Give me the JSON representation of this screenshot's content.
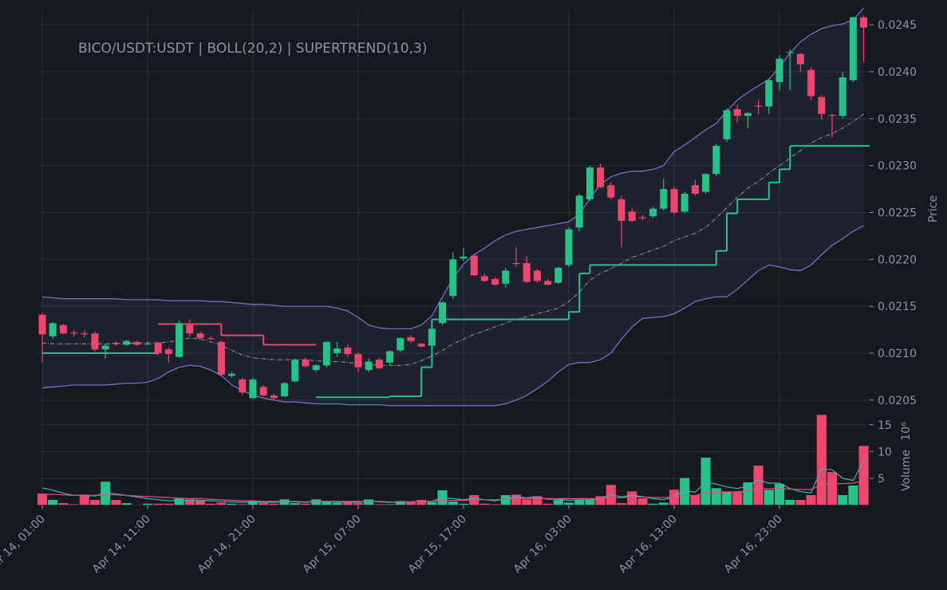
{
  "chart_data": {
    "type": "candlestick",
    "title": "BICO/USDT:USDT | BOLL(20,2) | SUPERTREND(10,3)",
    "x": [
      "Apr 14, 01:00",
      null,
      null,
      null,
      null,
      null,
      null,
      null,
      null,
      null,
      "Apr 14, 11:00",
      null,
      null,
      null,
      null,
      null,
      null,
      null,
      null,
      null,
      "Apr 14, 21:00",
      null,
      null,
      null,
      null,
      null,
      null,
      null,
      null,
      null,
      "Apr 15, 07:00",
      null,
      null,
      null,
      null,
      null,
      null,
      null,
      null,
      null,
      "Apr 15, 17:00",
      null,
      null,
      null,
      null,
      null,
      null,
      null,
      null,
      null,
      "Apr 16, 03:00",
      null,
      null,
      null,
      null,
      null,
      null,
      null,
      null,
      null,
      "Apr 16, 13:00",
      null,
      null,
      null,
      null,
      null,
      null,
      null,
      null,
      null,
      "Apr 16, 23:00",
      null,
      null,
      null,
      null,
      null,
      null,
      null,
      null
    ],
    "open": [
      0.02141,
      0.02118,
      0.0213,
      0.02122,
      0.02121,
      0.02121,
      0.02104,
      0.02111,
      0.02109,
      0.02112,
      0.0211,
      0.02111,
      0.02104,
      0.02096,
      0.0213,
      0.02121,
      0.02116,
      0.02112,
      0.02076,
      0.02072,
      0.02052,
      0.02064,
      0.02055,
      0.02054,
      0.0207,
      0.02093,
      0.02082,
      0.02087,
      0.021,
      0.02106,
      0.02099,
      0.02082,
      0.02093,
      0.0209,
      0.02103,
      0.02117,
      0.0211,
      0.02108,
      0.02132,
      0.02161,
      0.02201,
      0.02204,
      0.02182,
      0.02179,
      0.02174,
      0.02196,
      0.02196,
      0.02188,
      0.02177,
      0.02175,
      0.02194,
      0.02234,
      0.02264,
      0.02298,
      0.02279,
      0.02264,
      0.02251,
      0.02245,
      0.02246,
      0.02254,
      0.02275,
      0.02251,
      0.02279,
      0.02272,
      0.02291,
      0.02328,
      0.0236,
      0.02353,
      0.02364,
      0.02363,
      0.02389,
      0.0242,
      0.02419,
      0.02402,
      0.02373,
      0.02354,
      0.02353,
      0.02391,
      0.02458
    ],
    "high": [
      0.02143,
      0.02133,
      0.02131,
      0.02124,
      0.02124,
      0.02123,
      0.0211,
      0.02113,
      0.02114,
      0.02113,
      0.02112,
      0.02112,
      0.02106,
      0.02135,
      0.02136,
      0.02123,
      0.02118,
      0.02113,
      0.0208,
      0.02074,
      0.02074,
      0.02066,
      0.02057,
      0.02069,
      0.02094,
      0.02095,
      0.02088,
      0.02113,
      0.02112,
      0.02109,
      0.02101,
      0.02094,
      0.02095,
      0.02103,
      0.02117,
      0.02119,
      0.02111,
      0.02127,
      0.02155,
      0.02208,
      0.02212,
      0.02206,
      0.02185,
      0.02181,
      0.02191,
      0.02213,
      0.02203,
      0.0219,
      0.02179,
      0.02192,
      0.02234,
      0.0227,
      0.023,
      0.02302,
      0.02282,
      0.02268,
      0.02255,
      0.02247,
      0.02256,
      0.02286,
      0.02278,
      0.02272,
      0.02285,
      0.02292,
      0.02323,
      0.02361,
      0.02365,
      0.02357,
      0.0237,
      0.02393,
      0.02418,
      0.02424,
      0.0242,
      0.02405,
      0.02375,
      0.02355,
      0.024,
      0.02459,
      0.0246
    ],
    "low": [
      0.0209,
      0.02116,
      0.0212,
      0.02118,
      0.02117,
      0.02102,
      0.02094,
      0.02108,
      0.02108,
      0.02108,
      0.02109,
      0.02098,
      0.0209,
      0.02095,
      0.02118,
      0.02114,
      0.02114,
      0.02076,
      0.02074,
      0.02055,
      0.02051,
      0.02054,
      0.0205,
      0.02053,
      0.02069,
      0.02085,
      0.0208,
      0.02085,
      0.02096,
      0.02096,
      0.0208,
      0.0208,
      0.02083,
      0.02088,
      0.02101,
      0.02111,
      0.02106,
      0.02107,
      0.0213,
      0.02158,
      0.02198,
      0.02182,
      0.02176,
      0.02172,
      0.0217,
      0.02192,
      0.02175,
      0.02175,
      0.02172,
      0.02174,
      0.02192,
      0.0223,
      0.02262,
      0.02276,
      0.02264,
      0.02213,
      0.0224,
      0.02242,
      0.02244,
      0.02252,
      0.02248,
      0.02249,
      0.02268,
      0.0227,
      0.02289,
      0.02325,
      0.02346,
      0.0234,
      0.02355,
      0.02355,
      0.0238,
      0.0238,
      0.024,
      0.0237,
      0.02349,
      0.0233,
      0.02351,
      0.02389,
      0.0241
    ],
    "close": [
      0.0212,
      0.02132,
      0.02121,
      0.02121,
      0.0212,
      0.02104,
      0.02108,
      0.0211,
      0.02113,
      0.02109,
      0.0211,
      0.021,
      0.02099,
      0.02132,
      0.02121,
      0.02116,
      0.02115,
      0.02077,
      0.02078,
      0.02058,
      0.02072,
      0.02055,
      0.02052,
      0.02068,
      0.02093,
      0.02086,
      0.02087,
      0.02112,
      0.02105,
      0.02099,
      0.02085,
      0.02091,
      0.02084,
      0.02102,
      0.02116,
      0.02113,
      0.02107,
      0.02126,
      0.02154,
      0.022,
      0.02203,
      0.02183,
      0.02177,
      0.02173,
      0.02188,
      0.02195,
      0.02176,
      0.02177,
      0.02173,
      0.02191,
      0.02232,
      0.02268,
      0.02298,
      0.02277,
      0.02266,
      0.02241,
      0.02241,
      0.02244,
      0.02254,
      0.02275,
      0.0225,
      0.0227,
      0.0227,
      0.02291,
      0.02321,
      0.02359,
      0.02353,
      0.02356,
      0.02363,
      0.02391,
      0.02414,
      0.02421,
      0.02408,
      0.02374,
      0.02355,
      0.02353,
      0.02394,
      0.02458,
      0.02447
    ],
    "colors": {
      "up": "#26c28a",
      "down": "#f0466e"
    },
    "ylabel": "Price",
    "ylim": [
      0.02043,
      0.02468
    ],
    "yticks": [
      0.0205,
      {
        "value": 0.021,
        "label": "0.0210"
      },
      0.0215,
      {
        "value": 0.022,
        "label": "0.0220"
      },
      0.0225,
      {
        "value": 0.023,
        "label": "0.0230"
      },
      0.0235,
      {
        "value": 0.024,
        "label": "0.0240"
      },
      0.0245
    ],
    "grid": true,
    "bollinger": {
      "color": "#7b6cc9",
      "middle_color": "#9a9a9a",
      "upper": [
        0.0216,
        0.02159,
        0.02158,
        0.02158,
        0.02158,
        0.02158,
        0.02158,
        0.02158,
        0.02157,
        0.02157,
        0.02157,
        0.02157,
        0.02156,
        0.02156,
        0.02156,
        0.02156,
        0.02155,
        0.02155,
        0.02154,
        0.02153,
        0.02152,
        0.02152,
        0.02151,
        0.0215,
        0.0215,
        0.0215,
        0.0215,
        0.0215,
        0.02148,
        0.02145,
        0.02138,
        0.0213,
        0.02127,
        0.02126,
        0.02126,
        0.02126,
        0.0213,
        0.0214,
        0.0216,
        0.0218,
        0.02195,
        0.02205,
        0.02212,
        0.0222,
        0.02226,
        0.0223,
        0.02232,
        0.02234,
        0.02236,
        0.02238,
        0.0224,
        0.02248,
        0.02265,
        0.0228,
        0.02288,
        0.02292,
        0.02294,
        0.02294,
        0.02296,
        0.023,
        0.02315,
        0.02322,
        0.0233,
        0.02338,
        0.02345,
        0.02358,
        0.0237,
        0.02378,
        0.02385,
        0.02392,
        0.02405,
        0.0242,
        0.02432,
        0.0244,
        0.02446,
        0.02449,
        0.02451,
        0.02455,
        0.02468
      ],
      "middle": [
        0.02111,
        0.0211,
        0.0211,
        0.0211,
        0.0211,
        0.0211,
        0.0211,
        0.0211,
        0.0211,
        0.02111,
        0.02111,
        0.02111,
        0.02112,
        0.02114,
        0.02116,
        0.02115,
        0.02112,
        0.02108,
        0.02103,
        0.02098,
        0.02095,
        0.02094,
        0.02093,
        0.02093,
        0.02093,
        0.02093,
        0.02092,
        0.02091,
        0.02091,
        0.0209,
        0.02089,
        0.02088,
        0.02087,
        0.02087,
        0.02087,
        0.02088,
        0.02092,
        0.02097,
        0.02103,
        0.0211,
        0.02115,
        0.0212,
        0.02124,
        0.02128,
        0.02132,
        0.02136,
        0.02139,
        0.02142,
        0.02145,
        0.02148,
        0.02155,
        0.02165,
        0.02178,
        0.02185,
        0.0219,
        0.02196,
        0.02202,
        0.02206,
        0.0221,
        0.02214,
        0.0222,
        0.02224,
        0.02228,
        0.02234,
        0.02244,
        0.02255,
        0.02266,
        0.02276,
        0.02283,
        0.02292,
        0.023,
        0.02308,
        0.02316,
        0.02324,
        0.0233,
        0.02334,
        0.0234,
        0.02347,
        0.02355
      ],
      "lower": [
        0.02063,
        0.02064,
        0.02065,
        0.02066,
        0.02066,
        0.02066,
        0.02066,
        0.02067,
        0.02068,
        0.02068,
        0.02069,
        0.02073,
        0.0208,
        0.02085,
        0.02087,
        0.02086,
        0.02082,
        0.02076,
        0.02066,
        0.0206,
        0.02055,
        0.02052,
        0.0205,
        0.02048,
        0.02048,
        0.02047,
        0.02046,
        0.02046,
        0.02046,
        0.02045,
        0.02045,
        0.02045,
        0.02045,
        0.02044,
        0.02044,
        0.02044,
        0.02044,
        0.02044,
        0.02044,
        0.02044,
        0.02044,
        0.02044,
        0.02044,
        0.02044,
        0.02046,
        0.0205,
        0.02055,
        0.02062,
        0.0207,
        0.0208,
        0.02088,
        0.0209,
        0.0209,
        0.02093,
        0.021,
        0.02115,
        0.02128,
        0.02137,
        0.02138,
        0.02139,
        0.02142,
        0.02148,
        0.02155,
        0.02158,
        0.0216,
        0.0216,
        0.02168,
        0.02178,
        0.02188,
        0.02194,
        0.02192,
        0.02189,
        0.02188,
        0.02194,
        0.02205,
        0.02215,
        0.02222,
        0.0223,
        0.02236
      ]
    },
    "supertrend": [
      {
        "color": "#26c28a",
        "values": [
          0.021,
          0.021,
          0.021,
          0.021,
          0.021,
          0.021,
          0.021,
          0.021,
          0.021,
          0.021,
          0.021,
          null,
          null,
          null,
          null,
          null,
          null,
          null,
          null,
          null,
          null,
          null,
          null,
          null,
          null,
          null,
          0.02053,
          0.02053,
          0.02053,
          0.02053,
          0.02053,
          0.02053,
          0.02053,
          0.02054,
          0.02054,
          0.02054,
          0.02085,
          0.02136,
          0.02136,
          0.02136,
          0.02136,
          0.02136,
          0.02136,
          0.02136,
          0.02136,
          0.02136,
          0.02136,
          0.02136,
          0.02136,
          0.02136,
          0.02144,
          0.02185,
          0.02194,
          0.02194,
          0.02194,
          0.02194,
          0.02194,
          0.02194,
          0.02194,
          0.02194,
          0.02194,
          0.02194,
          0.02194,
          0.02194,
          0.02209,
          0.02249,
          0.02264,
          0.02264,
          0.02264,
          0.02282,
          0.02296,
          0.02321,
          0.02321,
          0.02321,
          0.02321,
          0.02321,
          0.02321,
          0.02321,
          0.02321
        ]
      },
      {
        "color": "#f0466e",
        "values": [
          null,
          null,
          null,
          null,
          null,
          null,
          null,
          null,
          null,
          null,
          null,
          0.02131,
          0.02131,
          0.02131,
          0.02131,
          0.02131,
          0.02131,
          0.02119,
          0.02119,
          0.02119,
          0.02119,
          0.02109,
          0.02109,
          0.02109,
          0.02109,
          0.02109,
          null,
          null,
          null,
          null,
          null,
          null,
          null,
          null,
          null,
          null,
          null,
          null,
          null,
          null,
          null,
          null,
          null,
          null,
          null,
          null,
          null,
          null,
          null,
          null,
          null,
          null,
          null,
          null,
          null,
          null,
          null,
          null,
          null,
          null,
          null,
          null,
          null,
          null,
          null,
          null,
          null,
          null,
          null,
          null,
          null,
          null,
          null,
          null,
          null,
          null,
          null,
          null,
          null
        ]
      }
    ],
    "volume": {
      "ylabel": "Volume",
      "scale": "10⁶",
      "ylim": [
        0,
        17.5
      ],
      "yticks": [
        5,
        10,
        15
      ],
      "values": [
        2.2,
        1.0,
        0.4,
        0.2,
        2.0,
        1.0,
        4.4,
        1.0,
        0.4,
        0.1,
        0.3,
        0.3,
        0.3,
        1.3,
        1.1,
        1.0,
        0.3,
        0.5,
        0.3,
        0.2,
        0.8,
        0.5,
        0.3,
        1.1,
        0.4,
        0.3,
        1.1,
        0.7,
        0.5,
        0.6,
        0.5,
        1.1,
        0.2,
        0.2,
        0.8,
        0.7,
        1.0,
        0.6,
        2.8,
        0.7,
        0.3,
        1.9,
        0.3,
        0.2,
        1.9,
        2.0,
        1.1,
        1.7,
        0.3,
        1.0,
        0.5,
        1.0,
        1.0,
        1.7,
        3.8,
        0.4,
        2.6,
        1.3,
        0.3,
        0.5,
        2.9,
        5.1,
        1.9,
        8.9,
        3.2,
        2.6,
        2.5,
        4.3,
        7.4,
        2.9,
        4.0,
        1.0,
        1.0,
        1.9,
        16.9,
        6.2,
        1.9,
        3.7,
        11.1
      ],
      "ma": [
        {
          "color": "#3ab3c4",
          "values": [
            3.2,
            2.8,
            2.2,
            1.8,
            1.8,
            1.7,
            2.3,
            2.1,
            1.8,
            1.5,
            1.2,
            1.0,
            0.8,
            0.9,
            0.9,
            0.9,
            0.8,
            0.7,
            0.6,
            0.5,
            0.6,
            0.6,
            0.5,
            0.7,
            0.6,
            0.5,
            0.7,
            0.7,
            0.6,
            0.6,
            0.6,
            0.8,
            0.6,
            0.5,
            0.6,
            0.6,
            0.7,
            0.7,
            1.4,
            1.2,
            1.0,
            1.3,
            1.0,
            0.8,
            1.2,
            1.5,
            1.4,
            1.5,
            1.1,
            1.1,
            0.9,
            1.0,
            1.0,
            1.2,
            2.0,
            1.5,
            1.8,
            1.6,
            1.2,
            1.0,
            1.6,
            2.7,
            2.4,
            4.3,
            3.9,
            3.4,
            3.1,
            3.5,
            4.7,
            4.1,
            4.1,
            3.1,
            2.5,
            2.3,
            6.8,
            6.6,
            5.0,
            4.6,
            8.3
          ]
        },
        {
          "color": "#e0507f",
          "values": [
            2.0,
            2.0,
            1.9,
            1.8,
            1.8,
            1.8,
            1.9,
            1.9,
            1.8,
            1.7,
            1.6,
            1.5,
            1.4,
            1.3,
            1.2,
            1.2,
            1.1,
            1.0,
            0.9,
            0.8,
            0.8,
            0.7,
            0.7,
            0.7,
            0.7,
            0.6,
            0.7,
            0.7,
            0.7,
            0.7,
            0.7,
            0.7,
            0.7,
            0.6,
            0.6,
            0.6,
            0.7,
            0.7,
            0.9,
            0.9,
            0.9,
            1.0,
            1.0,
            1.0,
            1.1,
            1.2,
            1.2,
            1.3,
            1.2,
            1.2,
            1.2,
            1.2,
            1.2,
            1.2,
            1.4,
            1.4,
            1.5,
            1.5,
            1.4,
            1.4,
            1.5,
            1.8,
            1.8,
            2.3,
            2.4,
            2.4,
            2.5,
            2.7,
            3.0,
            3.1,
            3.1,
            3.0,
            2.9,
            2.9,
            3.8,
            4.0,
            4.0,
            4.1,
            4.6
          ]
        }
      ]
    }
  }
}
